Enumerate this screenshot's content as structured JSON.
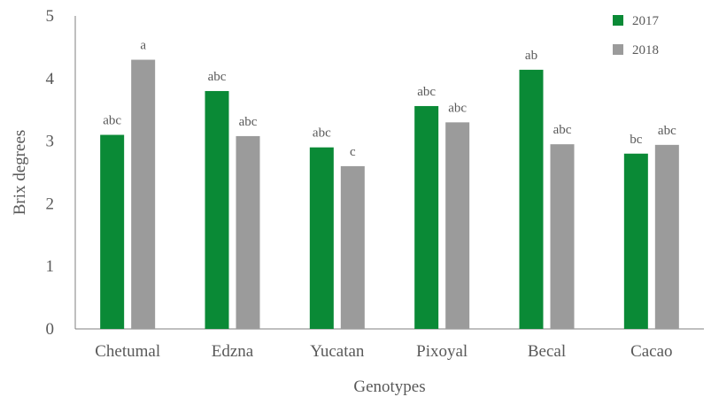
{
  "chart_data": {
    "type": "bar",
    "xlabel": "Genotypes",
    "ylabel": "Brix degrees",
    "ylim": [
      0,
      5
    ],
    "yticks": [
      0,
      1,
      2,
      3,
      4,
      5
    ],
    "grid": false,
    "legend_position": "top-right",
    "categories": [
      "Chetumal",
      "Edzna",
      "Yucatan",
      "Pixoyal",
      "Becal",
      "Cacao"
    ],
    "series": [
      {
        "name": "2017",
        "color": "#0a8a36",
        "values": [
          3.1,
          3.8,
          2.9,
          3.56,
          4.14,
          2.8
        ],
        "labels": [
          "abc",
          "abc",
          "abc",
          "abc",
          "ab",
          "bc"
        ]
      },
      {
        "name": "2018",
        "color": "#9b9b9b",
        "values": [
          4.3,
          3.08,
          2.6,
          3.3,
          2.95,
          2.94
        ],
        "labels": [
          "a",
          "abc",
          "c",
          "abc",
          "abc",
          "abc"
        ]
      }
    ]
  }
}
